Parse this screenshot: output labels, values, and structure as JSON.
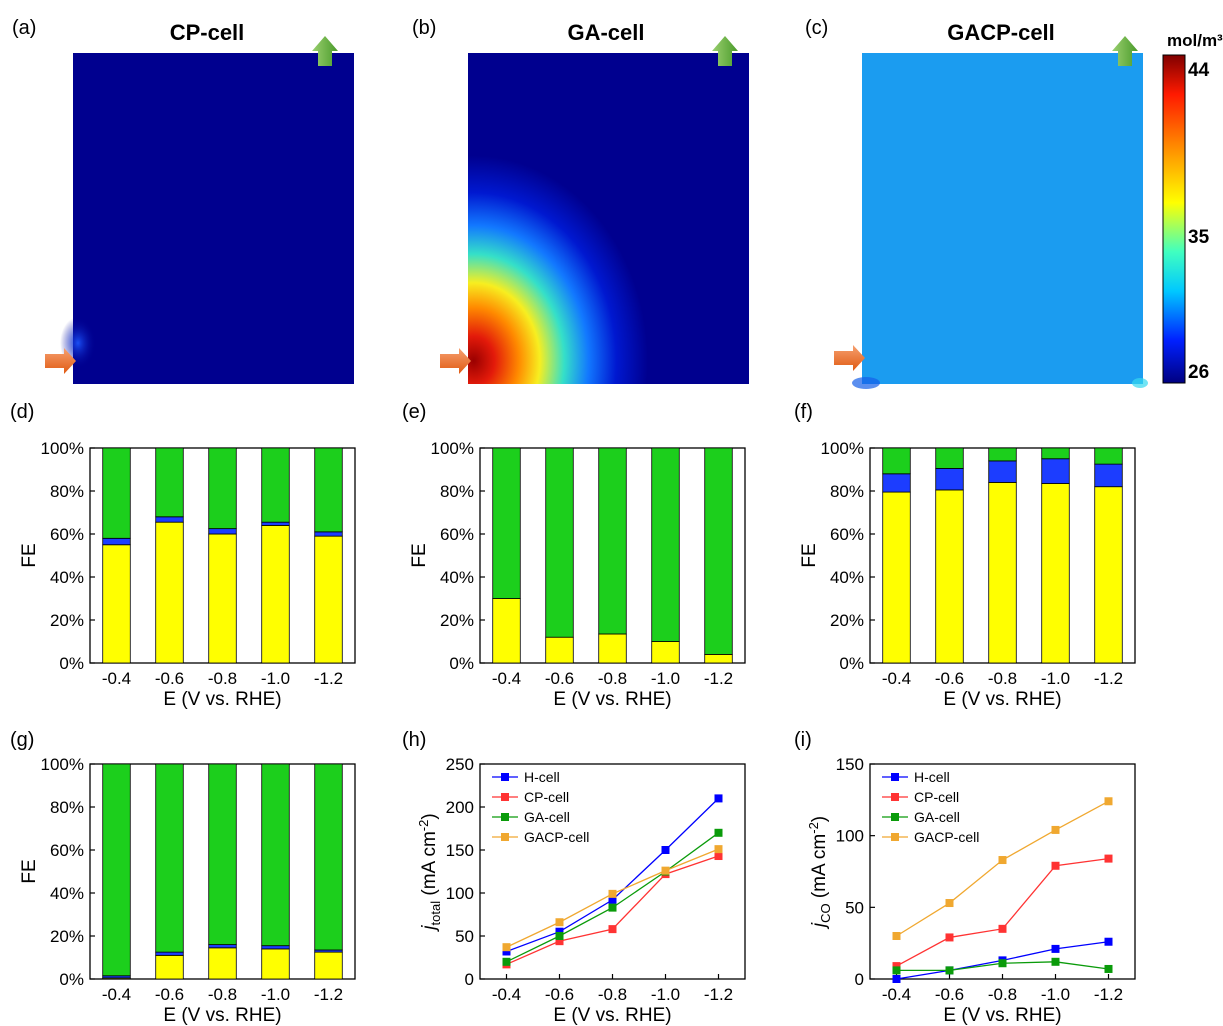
{
  "colors": {
    "yellow": "#ffff00",
    "blue": "#1c3dff",
    "green": "#1ccf1c",
    "navy": "#00008f",
    "arrow_in": "#f07a2c",
    "arrow_out": "#6fb640"
  },
  "maps": [
    {
      "panel": "(a)",
      "title": "CP-cell"
    },
    {
      "panel": "(b)",
      "title": "GA-cell"
    },
    {
      "panel": "(c)",
      "title": "GACP-cell"
    }
  ],
  "colorbar": {
    "unit": "mol/m³",
    "ticks": [
      "44",
      "35",
      "26"
    ]
  },
  "chart_data": [
    {
      "panel": "(d)",
      "type": "bar",
      "stacked": true,
      "categories": [
        "-0.4",
        "-0.6",
        "-0.8",
        "-1.0",
        "-1.2"
      ],
      "series": [
        {
          "color": "yellow",
          "values": [
            55,
            65.5,
            60,
            64,
            59
          ]
        },
        {
          "color": "blue",
          "values": [
            3,
            2.5,
            2.5,
            1.5,
            2
          ]
        },
        {
          "color": "green",
          "values": [
            42,
            32,
            37.5,
            34.5,
            39
          ]
        }
      ],
      "ylim": [
        0,
        100
      ],
      "yticks": [
        "0%",
        "20%",
        "40%",
        "60%",
        "80%",
        "100%"
      ],
      "ylabel": "FE",
      "xlabel": "E (V vs. RHE)"
    },
    {
      "panel": "(e)",
      "type": "bar",
      "stacked": true,
      "categories": [
        "-0.4",
        "-0.6",
        "-0.8",
        "-1.0",
        "-1.2"
      ],
      "series": [
        {
          "color": "yellow",
          "values": [
            30,
            12,
            13.5,
            10,
            4
          ]
        },
        {
          "color": "blue",
          "values": [
            0,
            0,
            0,
            0,
            0
          ]
        },
        {
          "color": "green",
          "values": [
            70,
            88,
            86.5,
            90,
            96
          ]
        }
      ],
      "ylim": [
        0,
        100
      ],
      "yticks": [
        "0%",
        "20%",
        "40%",
        "60%",
        "80%",
        "100%"
      ],
      "ylabel": "FE",
      "xlabel": "E (V vs. RHE)"
    },
    {
      "panel": "(f)",
      "type": "bar",
      "stacked": true,
      "categories": [
        "-0.4",
        "-0.6",
        "-0.8",
        "-1.0",
        "-1.2"
      ],
      "series": [
        {
          "color": "yellow",
          "values": [
            79.5,
            80.5,
            84,
            83.5,
            82
          ]
        },
        {
          "color": "blue",
          "values": [
            8.5,
            10,
            10,
            11.5,
            10.5
          ]
        },
        {
          "color": "green",
          "values": [
            12,
            9.5,
            6,
            5,
            7.5
          ]
        }
      ],
      "ylim": [
        0,
        100
      ],
      "yticks": [
        "0%",
        "20%",
        "40%",
        "60%",
        "80%",
        "100%"
      ],
      "ylabel": "FE",
      "xlabel": "E (V vs. RHE)"
    },
    {
      "panel": "(g)",
      "type": "bar",
      "stacked": true,
      "categories": [
        "-0.4",
        "-0.6",
        "-0.8",
        "-1.0",
        "-1.2"
      ],
      "series": [
        {
          "color": "yellow",
          "values": [
            0.5,
            11,
            14.5,
            14,
            12.5
          ]
        },
        {
          "color": "blue",
          "values": [
            1,
            1.5,
            1.5,
            1.5,
            1
          ]
        },
        {
          "color": "green",
          "values": [
            98.5,
            87.5,
            84,
            84.5,
            86.5
          ]
        }
      ],
      "ylim": [
        0,
        100
      ],
      "yticks": [
        "0%",
        "20%",
        "40%",
        "60%",
        "80%",
        "100%"
      ],
      "ylabel": "FE",
      "xlabel": "E (V vs. RHE)"
    },
    {
      "panel": "(h)",
      "type": "line",
      "x": [
        -0.4,
        -0.6,
        -0.8,
        -1.0,
        -1.2
      ],
      "xticks": [
        "-0.4",
        "-0.6",
        "-0.8",
        "-1.0",
        "-1.2"
      ],
      "series": [
        {
          "name": "H-cell",
          "color": "#0000ff",
          "values": [
            32,
            55,
            92,
            150,
            210
          ]
        },
        {
          "name": "CP-cell",
          "color": "#ff3333",
          "values": [
            17,
            44,
            58,
            122,
            143
          ]
        },
        {
          "name": "GA-cell",
          "color": "#0a9b0a",
          "values": [
            20,
            50,
            83,
            125,
            170
          ]
        },
        {
          "name": "GACP-cell",
          "color": "#f0a830",
          "values": [
            37,
            66,
            99,
            126,
            151
          ]
        }
      ],
      "ylim": [
        0,
        250
      ],
      "yticks": [
        "0",
        "50",
        "100",
        "150",
        "200",
        "250"
      ],
      "ylabel": {
        "main": "j",
        "sub": "total",
        "unit": " (mA cm",
        "sup": "-2",
        "close": ")"
      },
      "xlabel": "E (V vs. RHE)"
    },
    {
      "panel": "(i)",
      "type": "line",
      "x": [
        -0.4,
        -0.6,
        -0.8,
        -1.0,
        -1.2
      ],
      "xticks": [
        "-0.4",
        "-0.6",
        "-0.8",
        "-1.0",
        "-1.2"
      ],
      "series": [
        {
          "name": "H-cell",
          "color": "#0000ff",
          "values": [
            0,
            6,
            13,
            21,
            26
          ]
        },
        {
          "name": "CP-cell",
          "color": "#ff3333",
          "values": [
            9,
            29,
            35,
            79,
            84
          ]
        },
        {
          "name": "GA-cell",
          "color": "#0a9b0a",
          "values": [
            6,
            6,
            11,
            12,
            7
          ]
        },
        {
          "name": "GACP-cell",
          "color": "#f0a830",
          "values": [
            30,
            53,
            83,
            104,
            124
          ]
        }
      ],
      "ylim": [
        0,
        150
      ],
      "yticks": [
        "0",
        "50",
        "100",
        "150"
      ],
      "ylabel": {
        "main": "j",
        "sub": "CO",
        "unit": " (mA cm",
        "sup": "-2",
        "close": ")"
      },
      "xlabel": "E (V vs. RHE)"
    }
  ]
}
